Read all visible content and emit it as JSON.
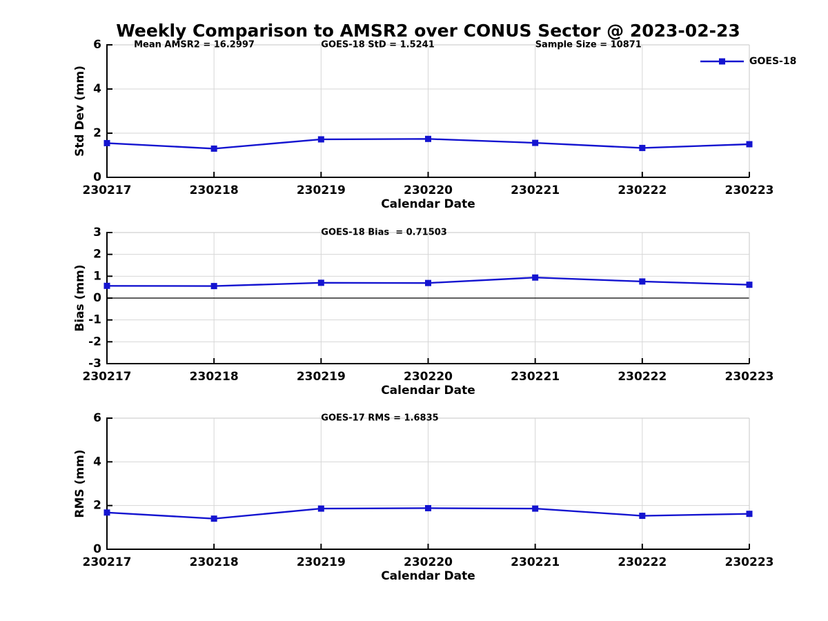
{
  "page_title": "Weekly Comparison to AMSR2 over CONUS Sector @ 2023-02-23",
  "colors": {
    "line": "#1414d0",
    "grid": "#d6d6d6",
    "frame_light": "#d0d0d0",
    "axis": "#000000",
    "zero_line": "#000000",
    "text": "#000000",
    "background": "#ffffff"
  },
  "legend": {
    "label": "GOES-18"
  },
  "chart_data": [
    {
      "type": "line",
      "name": "std-dev",
      "ylabel": "Std Dev (mm)",
      "xlabel": "Calendar Date",
      "ylim": [
        0,
        6
      ],
      "yticks": [
        0,
        2,
        4,
        6
      ],
      "categories": [
        "230217",
        "230218",
        "230219",
        "230220",
        "230221",
        "230222",
        "230223"
      ],
      "series": [
        {
          "name": "GOES-18",
          "values": [
            1.55,
            1.3,
            1.72,
            1.74,
            1.56,
            1.33,
            1.5
          ]
        }
      ],
      "annotations": [
        "Mean AMSR2 = 16.2997",
        "GOES-18 StD = 1.5241",
        "Sample Size = 10871"
      ],
      "legend": true,
      "zero_line": false,
      "grid": true,
      "legend_position": "northeast"
    },
    {
      "type": "line",
      "name": "bias",
      "ylabel": "Bias (mm)",
      "xlabel": "Calendar Date",
      "ylim": [
        -3,
        3
      ],
      "yticks": [
        -3,
        -2,
        -1,
        0,
        1,
        2,
        3
      ],
      "categories": [
        "230217",
        "230218",
        "230219",
        "230220",
        "230221",
        "230222",
        "230223"
      ],
      "series": [
        {
          "name": "GOES-18",
          "values": [
            0.56,
            0.55,
            0.7,
            0.69,
            0.94,
            0.76,
            0.61
          ]
        }
      ],
      "annotations": [
        "GOES-18 Bias  = 0.71503"
      ],
      "legend": false,
      "zero_line": true,
      "grid": true
    },
    {
      "type": "line",
      "name": "rms",
      "ylabel": "RMS (mm)",
      "xlabel": "Calendar Date",
      "ylim": [
        0,
        6
      ],
      "yticks": [
        0,
        2,
        4,
        6
      ],
      "categories": [
        "230217",
        "230218",
        "230219",
        "230220",
        "230221",
        "230222",
        "230223"
      ],
      "series": [
        {
          "name": "GOES-18",
          "values": [
            1.68,
            1.4,
            1.86,
            1.88,
            1.86,
            1.53,
            1.62
          ]
        }
      ],
      "annotations": [
        "GOES-17 RMS = 1.6835"
      ],
      "legend": false,
      "zero_line": false,
      "grid": true
    }
  ]
}
